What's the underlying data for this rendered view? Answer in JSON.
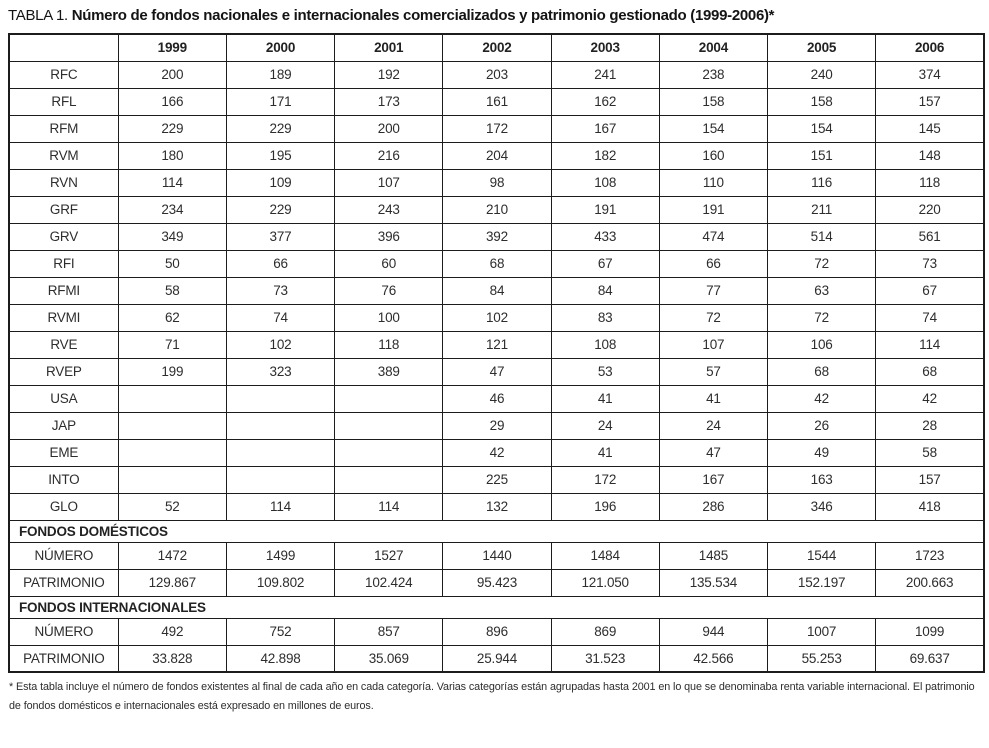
{
  "title": {
    "prefix": "TABLA 1.",
    "main": "Número de fondos nacionales e internacionales comercializados y patrimonio gestionado (1999-2006)*"
  },
  "chart_data": {
    "type": "table",
    "columns": [
      "",
      "1999",
      "2000",
      "2001",
      "2002",
      "2003",
      "2004",
      "2005",
      "2006"
    ],
    "category_rows": [
      {
        "label": "RFC",
        "values": [
          "200",
          "189",
          "192",
          "203",
          "241",
          "238",
          "240",
          "374"
        ]
      },
      {
        "label": "RFL",
        "values": [
          "166",
          "171",
          "173",
          "161",
          "162",
          "158",
          "158",
          "157"
        ]
      },
      {
        "label": "RFM",
        "values": [
          "229",
          "229",
          "200",
          "172",
          "167",
          "154",
          "154",
          "145"
        ]
      },
      {
        "label": "RVM",
        "values": [
          "180",
          "195",
          "216",
          "204",
          "182",
          "160",
          "151",
          "148"
        ]
      },
      {
        "label": "RVN",
        "values": [
          "114",
          "109",
          "107",
          "98",
          "108",
          "110",
          "116",
          "118"
        ]
      },
      {
        "label": "GRF",
        "values": [
          "234",
          "229",
          "243",
          "210",
          "191",
          "191",
          "211",
          "220"
        ]
      },
      {
        "label": "GRV",
        "values": [
          "349",
          "377",
          "396",
          "392",
          "433",
          "474",
          "514",
          "561"
        ]
      },
      {
        "label": "RFI",
        "values": [
          "50",
          "66",
          "60",
          "68",
          "67",
          "66",
          "72",
          "73"
        ]
      },
      {
        "label": "RFMI",
        "values": [
          "58",
          "73",
          "76",
          "84",
          "84",
          "77",
          "63",
          "67"
        ]
      },
      {
        "label": "RVMI",
        "values": [
          "62",
          "74",
          "100",
          "102",
          "83",
          "72",
          "72",
          "74"
        ]
      },
      {
        "label": "RVE",
        "values": [
          "71",
          "102",
          "118",
          "121",
          "108",
          "107",
          "106",
          "114"
        ]
      },
      {
        "label": "RVEP",
        "values": [
          "199",
          "323",
          "389",
          "47",
          "53",
          "57",
          "68",
          "68"
        ]
      },
      {
        "label": "USA",
        "values": [
          "",
          "",
          "",
          "46",
          "41",
          "41",
          "42",
          "42"
        ]
      },
      {
        "label": "JAP",
        "values": [
          "",
          "",
          "",
          "29",
          "24",
          "24",
          "26",
          "28"
        ]
      },
      {
        "label": "EME",
        "values": [
          "",
          "",
          "",
          "42",
          "41",
          "47",
          "49",
          "58"
        ]
      },
      {
        "label": "INTO",
        "values": [
          "",
          "",
          "",
          "225",
          "172",
          "167",
          "163",
          "157"
        ]
      },
      {
        "label": "GLO",
        "values": [
          "52",
          "114",
          "114",
          "132",
          "196",
          "286",
          "346",
          "418"
        ]
      }
    ],
    "sections": [
      {
        "title": "FONDOS DOMÉSTICOS",
        "rows": [
          {
            "label": "NÚMERO",
            "values": [
              "1472",
              "1499",
              "1527",
              "1440",
              "1484",
              "1485",
              "1544",
              "1723"
            ]
          },
          {
            "label": "PATRIMONIO",
            "values": [
              "129.867",
              "109.802",
              "102.424",
              "95.423",
              "121.050",
              "135.534",
              "152.197",
              "200.663"
            ]
          }
        ]
      },
      {
        "title": "FONDOS INTERNACIONALES",
        "rows": [
          {
            "label": "NÚMERO",
            "values": [
              "492",
              "752",
              "857",
              "896",
              "869",
              "944",
              "1007",
              "1099"
            ]
          },
          {
            "label": "PATRIMONIO",
            "values": [
              "33.828",
              "42.898",
              "35.069",
              "25.944",
              "31.523",
              "42.566",
              "55.253",
              "69.637"
            ]
          }
        ]
      }
    ]
  },
  "footnote": "* Esta tabla incluye el número de fondos existentes al final de cada año en cada categoría. Varias categorías están agrupadas hasta 2001 en lo que se denominaba renta variable internacional. El patrimonio de fondos domésticos e internacionales está expresado en millones de euros."
}
